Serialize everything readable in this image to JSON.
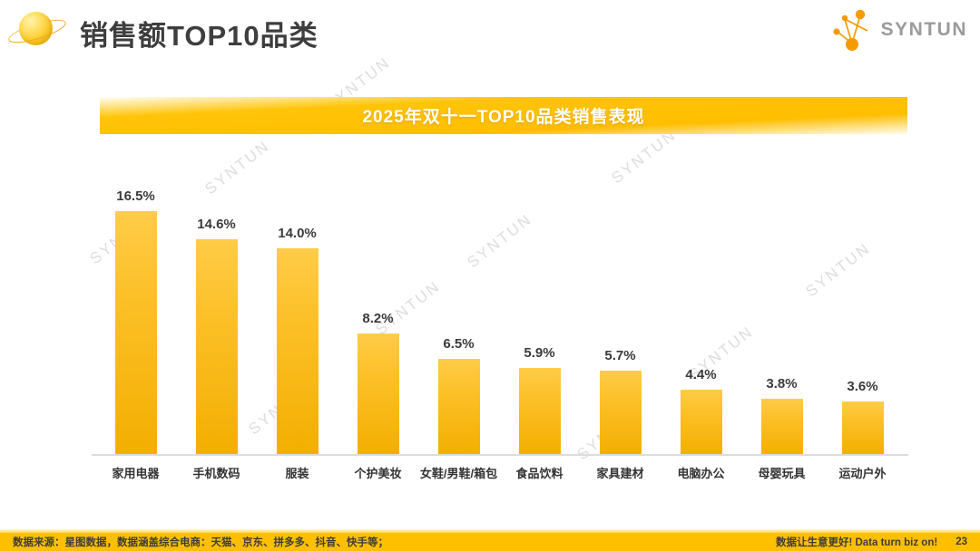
{
  "header": {
    "title": "销售额TOP10品类",
    "brand": "SYNTUN",
    "brand_color": "#9b9b9b",
    "logo_icon_color": "#f59b00"
  },
  "accent_color": "#ffc000",
  "watermark": {
    "text": "SYNTUN"
  },
  "chart_data": {
    "type": "bar",
    "title": "2025年双十一TOP10品类销售表现",
    "categories": [
      "家用电器",
      "手机数码",
      "服装",
      "个护美妆",
      "女鞋/男鞋/箱包",
      "食品饮料",
      "家具建材",
      "电脑办公",
      "母婴玩具",
      "运动户外"
    ],
    "values": [
      16.5,
      14.6,
      14.0,
      8.2,
      6.5,
      5.9,
      5.7,
      4.4,
      3.8,
      3.6
    ],
    "value_labels": [
      "16.5%",
      "14.6%",
      "14.0%",
      "8.2%",
      "6.5%",
      "5.9%",
      "5.7%",
      "4.4%",
      "3.8%",
      "3.6%"
    ],
    "unit": "%",
    "ylim": [
      0,
      18
    ],
    "grid": false,
    "legend": false,
    "data_labels": true,
    "bar_color_top": "#ffcc48",
    "bar_color_bottom": "#f3ae00"
  },
  "footer": {
    "source": "数据来源：星图数据，数据涵盖综合电商：天猫、京东、拼多多、抖音、快手等；",
    "slogan": "数据让生意更好! Data turn biz on!",
    "page": "23"
  }
}
